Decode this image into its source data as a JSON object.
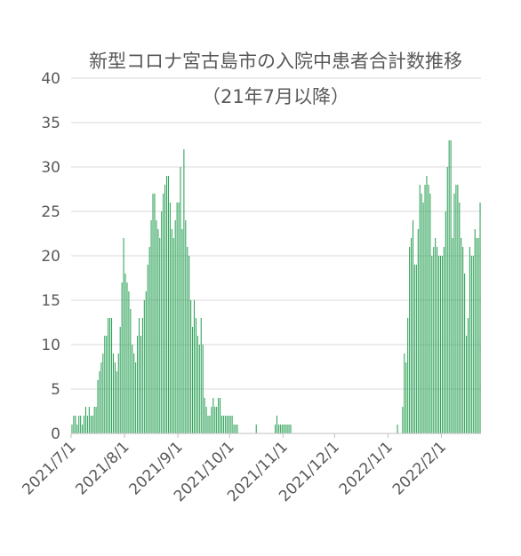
{
  "chart_data": {
    "type": "bar",
    "title": "新型コロナ宮古島市の入院中患者合計数推移",
    "subtitle": "（21年7月以降）",
    "xlabel": "",
    "ylabel": "",
    "ylim": [
      0,
      40
    ],
    "yticks": [
      0,
      5,
      10,
      15,
      20,
      25,
      30,
      35,
      40
    ],
    "grid": true,
    "legend": "none",
    "bar_color": "#2fa35a",
    "x_start": "2021/7/1",
    "x_tick_labels": [
      "2021/7/1",
      "2021/8/1",
      "2021/9/1",
      "2021/10/1",
      "2021/11/1",
      "2021/12/1",
      "2022/1/1",
      "2022/2/1"
    ],
    "x_tick_day_index": [
      0,
      31,
      62,
      92,
      123,
      153,
      184,
      215
    ],
    "values": [
      1,
      2,
      2,
      1,
      2,
      2,
      1,
      2,
      3,
      2,
      3,
      2,
      2,
      3,
      3,
      6,
      7,
      8,
      9,
      11,
      11,
      13,
      13,
      13,
      9,
      8,
      7,
      9,
      12,
      17,
      22,
      18,
      17,
      16,
      14,
      10,
      9,
      8,
      11,
      13,
      11,
      13,
      15,
      16,
      19,
      21,
      24,
      27,
      27,
      24,
      23,
      22,
      25,
      27,
      28,
      29,
      29,
      26,
      23,
      22,
      24,
      26,
      26,
      30,
      23,
      32,
      24,
      21,
      20,
      15,
      12,
      15,
      13,
      11,
      10,
      13,
      10,
      4,
      3,
      2,
      2,
      3,
      4,
      3,
      3,
      4,
      4,
      2,
      2,
      2,
      2,
      2,
      2,
      2,
      1,
      1,
      1,
      0,
      0,
      0,
      0,
      0,
      0,
      0,
      0,
      0,
      0,
      1,
      0,
      0,
      0,
      0,
      0,
      0,
      0,
      0,
      0,
      0,
      1,
      2,
      1,
      1,
      1,
      1,
      1,
      1,
      1,
      1,
      0,
      0,
      0,
      0,
      0,
      0,
      0,
      0,
      0,
      0,
      0,
      0,
      0,
      0,
      0,
      0,
      0,
      0,
      0,
      0,
      0,
      0,
      0,
      0,
      0,
      0,
      0,
      0,
      0,
      0,
      0,
      0,
      0,
      0,
      0,
      0,
      0,
      0,
      0,
      0,
      0,
      0,
      0,
      0,
      0,
      0,
      0,
      0,
      0,
      0,
      0,
      0,
      0,
      0,
      0,
      0,
      0,
      0,
      0,
      0,
      0,
      1,
      0,
      0,
      3,
      9,
      8,
      13,
      21,
      22,
      24,
      19,
      19,
      23,
      28,
      27,
      26,
      28,
      29,
      28,
      27,
      20,
      21,
      22,
      21,
      20,
      20,
      20,
      21,
      25,
      30,
      33,
      33,
      22,
      27,
      28,
      28,
      26,
      22,
      21,
      18,
      11,
      13,
      21,
      20,
      20,
      23,
      22,
      22,
      26
    ]
  }
}
